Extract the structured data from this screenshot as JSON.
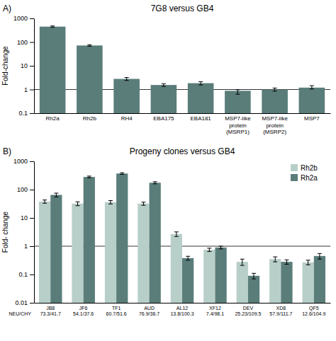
{
  "chart_data": [
    {
      "type": "bar",
      "title": "7G8 versus GB4",
      "categories": [
        "Rh2a",
        "Rh2b",
        "RH4",
        "EBA175",
        "EBA181",
        "MSP7-like\nprotein\n(MSRP1)",
        "MSP7-like\nprotein\n(MSRP2)",
        "MSP7"
      ],
      "values": [
        450,
        72,
        2.8,
        1.55,
        1.85,
        0.88,
        1.0,
        1.2
      ],
      "err_low": [
        30,
        5,
        0.4,
        0.2,
        0.3,
        0.25,
        0.15,
        0.15
      ],
      "err_high": [
        30,
        5,
        0.4,
        0.2,
        0.3,
        0.1,
        0.15,
        0.25
      ],
      "color": "#5a7d7a",
      "ylabel": "Fold-change",
      "log": "y",
      "ylim": [
        0.1,
        1000
      ],
      "yticks": [
        0.1,
        1,
        10,
        100,
        1000
      ],
      "reference_line": 1,
      "grid": false,
      "annotations": [
        {
          "text": "A)"
        }
      ]
    },
    {
      "type": "bar",
      "title": "Progeny clones versus GB4",
      "categories": [
        "JB8\n73.3/41.7",
        "JF6\n54.1/37.6",
        "TF1\n60.7/51.6",
        "AUD\n76.9/36.7",
        "AL12\n13.8/100.3",
        "XF12\n7.4/98.1",
        "DEV\n25.23/109.5",
        "XD8\n57.9/111.7",
        "QF5\n12.6/104.9"
      ],
      "series": [
        {
          "name": "Rh2b",
          "color": "#b8cfc9",
          "values": [
            38,
            32,
            36,
            32,
            2.7,
            0.75,
            0.28,
            0.35,
            0.27
          ],
          "err_low": [
            5,
            5,
            5,
            4,
            0.5,
            0.1,
            0.07,
            0.07,
            0.05
          ],
          "err_high": [
            5,
            5,
            5,
            4,
            0.5,
            0.1,
            0.07,
            0.07,
            0.05
          ]
        },
        {
          "name": "Rh2a",
          "color": "#5a7d7a",
          "values": [
            65,
            280,
            370,
            175,
            0.38,
            0.9,
            0.09,
            0.28,
            0.45
          ],
          "err_low": [
            10,
            20,
            25,
            15,
            0.06,
            0.1,
            0.02,
            0.05,
            0.1
          ],
          "err_high": [
            10,
            20,
            25,
            15,
            0.06,
            0.1,
            0.02,
            0.05,
            0.1
          ]
        }
      ],
      "ylabel": "Fold- change",
      "log": "y",
      "ylim": [
        0.01,
        1000
      ],
      "yticks": [
        0.01,
        0.1,
        1,
        10,
        100,
        1000
      ],
      "reference_line": 1,
      "grid": false,
      "legend": "upper right",
      "annotations": [
        {
          "text": "B)"
        },
        {
          "text": "NEU/CHY"
        }
      ]
    }
  ]
}
